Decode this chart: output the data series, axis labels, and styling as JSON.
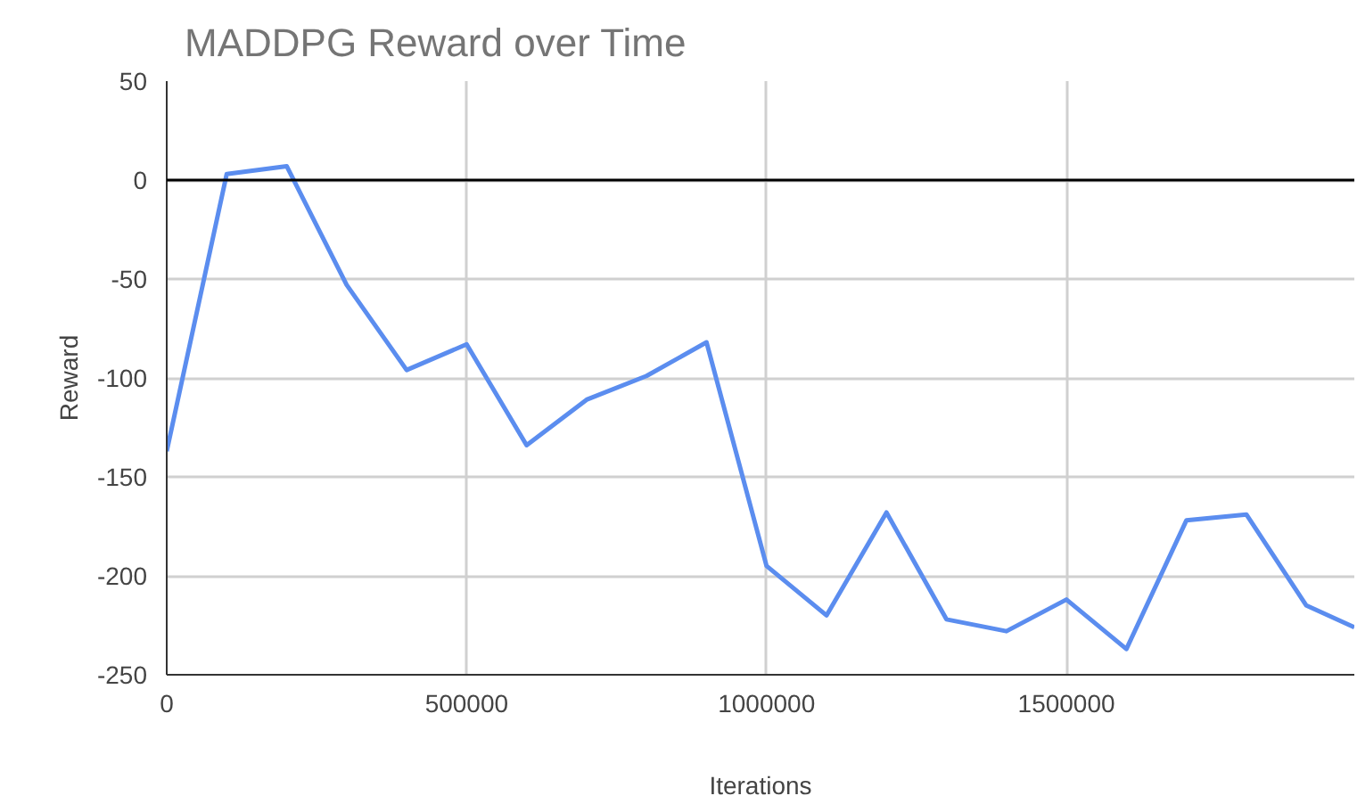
{
  "chart_data": {
    "type": "line",
    "title": "MADDPG Reward over Time",
    "xlabel": "Iterations",
    "ylabel": "Reward",
    "x": [
      0,
      100000,
      200000,
      300000,
      400000,
      500000,
      600000,
      700000,
      800000,
      900000,
      1000000,
      1100000,
      1200000,
      1300000,
      1400000,
      1500000,
      1600000,
      1700000,
      1800000,
      1900000,
      1980000
    ],
    "series": [
      {
        "color": "#5b8def",
        "values": [
          -137,
          3,
          7,
          -53,
          -96,
          -83,
          -134,
          -111,
          -99,
          -82,
          -195,
          -220,
          -168,
          -222,
          -228,
          -212,
          -237,
          -172,
          -169,
          -215,
          -226
        ]
      }
    ],
    "xlim": [
      0,
      1980000
    ],
    "ylim": [
      -250,
      50
    ],
    "xticks": [
      0,
      500000,
      1000000,
      1500000
    ],
    "yticks": [
      -250,
      -200,
      -150,
      -100,
      -50,
      0,
      50
    ],
    "ref_lines": [
      {
        "axis": "y",
        "value": 0,
        "color": "#000000"
      }
    ],
    "grid": true,
    "marker": "none",
    "line_style": "solid"
  }
}
